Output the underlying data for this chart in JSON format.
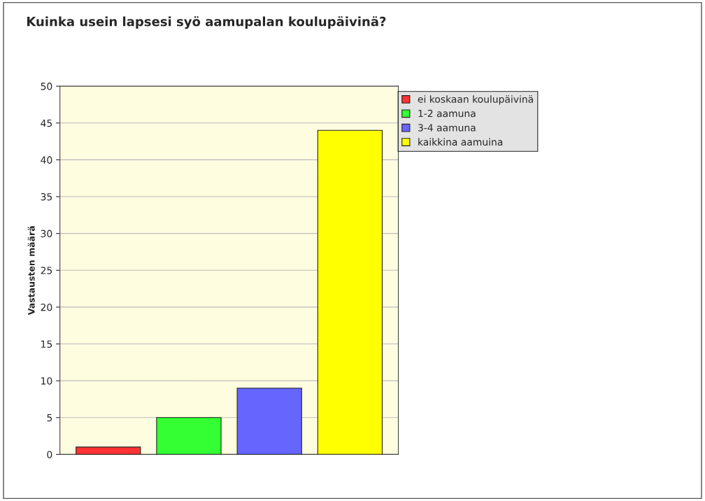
{
  "chart_data": {
    "type": "bar",
    "title": "Kuinka usein lapsesi syö aamupalan koulupäivinä?",
    "ylabel": "Vastausten määrä",
    "categories": [
      null,
      null,
      null,
      null
    ],
    "series": [
      {
        "name": "ei koskaan koulupäivinä",
        "color": "#ff3333",
        "values": [
          1,
          null,
          null,
          null
        ]
      },
      {
        "name": "1-2 aamuna",
        "color": "#33ff33",
        "values": [
          null,
          5,
          null,
          null
        ]
      },
      {
        "name": "3-4 aamuna",
        "color": "#6666ff",
        "values": [
          null,
          null,
          9,
          null
        ]
      },
      {
        "name": "kaikkina aamuina",
        "color": "#ffff00",
        "values": [
          null,
          null,
          null,
          44
        ]
      }
    ],
    "ylim": [
      0,
      50
    ],
    "yticks": [
      0,
      5,
      10,
      15,
      20,
      25,
      30,
      35,
      40,
      45,
      50
    ],
    "grid": "y",
    "legend": "top right"
  }
}
